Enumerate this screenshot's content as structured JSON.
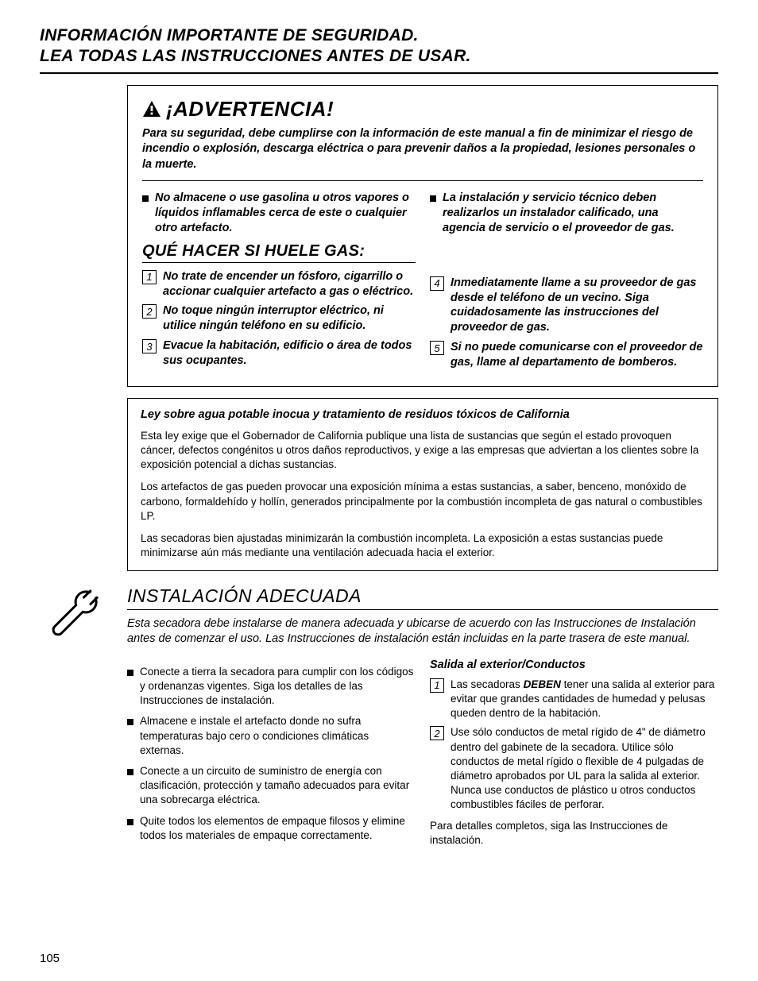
{
  "header": {
    "line1": "INFORMACIÓN IMPORTANTE DE SEGURIDAD.",
    "line2": "LEA TODAS LAS INSTRUCCIONES ANTES DE USAR."
  },
  "warning": {
    "title": "¡ADVERTENCIA!",
    "intro": "Para su seguridad, debe cumplirse con la información de este manual a fin de minimizar el riesgo de incendio o explosión, descarga eléctrica o para prevenir daños a la propiedad, lesiones personales o la muerte.",
    "bullets_left": [
      "No almacene o use gasolina u otros vapores o líquidos inflamables cerca de este o cualquier otro artefacto."
    ],
    "bullets_right": [
      "La instalación y servicio técnico deben realizarlos un instalador calificado, una agencia de servicio o el proveedor de gas."
    ]
  },
  "gas": {
    "heading": "QUÉ HACER SI HUELE GAS:",
    "left": [
      {
        "n": "1",
        "t": "No trate de encender un fósforo, cigarrillo o accionar cualquier artefacto a gas o eléctrico."
      },
      {
        "n": "2",
        "t": "No toque ningún interruptor eléctrico, ni utilice ningún teléfono en su edificio."
      },
      {
        "n": "3",
        "t": "Evacue la habitación, edificio o área de todos sus ocupantes."
      }
    ],
    "right": [
      {
        "n": "4",
        "t": "Inmediatamente llame a su proveedor de gas desde el teléfono de un vecino. Siga cuidadosamente las instrucciones del proveedor de gas."
      },
      {
        "n": "5",
        "t": "Si no puede comunicarse con el proveedor de gas, llame al departamento de bomberos."
      }
    ]
  },
  "law": {
    "title": "Ley sobre agua potable inocua y tratamiento de residuos tóxicos de California",
    "paras": [
      "Esta ley exige que el Gobernador de California publique una lista de sustancias que según el estado provoquen cáncer, defectos congénitos u otros daños reproductivos, y exige a las empresas que adviertan a los clientes sobre la exposición potencial a dichas sustancias.",
      "Los artefactos de gas pueden provocar una exposición mínima a estas sustancias, a saber, benceno, monóxido de carbono, formaldehído y hollín, generados principalmente por la combustión incompleta de gas natural o combustibles LP.",
      "Las secadoras bien ajustadas minimizarán la combustión incompleta.  La exposición a estas sustancias puede minimizarse aún más mediante una ventilación adecuada hacia el exterior."
    ]
  },
  "install": {
    "heading": "INSTALACIÓN ADECUADA",
    "intro": "Esta secadora debe instalarse de manera adecuada y ubicarse de acuerdo con las Instrucciones de Instalación antes de comenzar el uso. Las Instrucciones de instalación están incluidas en la parte trasera de este manual.",
    "left_bullets": [
      "Conecte a tierra la secadora para cumplir con los códigos y ordenanzas vigentes. Siga los detalles de las Instrucciones de instalación.",
      "Almacene e instale el artefacto donde no sufra temperaturas bajo cero o condiciones climáticas externas.",
      "Conecte a un circuito de suministro de energía con clasificación, protección y tamaño adecuados para evitar una sobrecarga eléctrica.",
      "Quite todos los elementos de empaque filosos y elimine todos los materiales de empaque correctamente."
    ],
    "right": {
      "subhead": "Salida al exterior/Conductos",
      "items": [
        {
          "n": "1",
          "pre": "Las secadoras ",
          "bold": "DEBEN",
          "post": " tener una salida al exterior para evitar que grandes cantidades de humedad y pelusas queden dentro de la habitación."
        },
        {
          "n": "2",
          "pre": "Use sólo conductos de metal rígido de 4\" de diámetro dentro del gabinete de la secadora. Utilice sólo conductos de metal rígido o flexible de 4 pulgadas de diámetro aprobados por UL para la salida al exterior.  Nunca use conductos de plástico u otros conductos combustibles fáciles de perforar.",
          "bold": "",
          "post": ""
        }
      ],
      "closing": "Para detalles completos, siga las Instrucciones de instalación."
    }
  },
  "page_number": "105"
}
